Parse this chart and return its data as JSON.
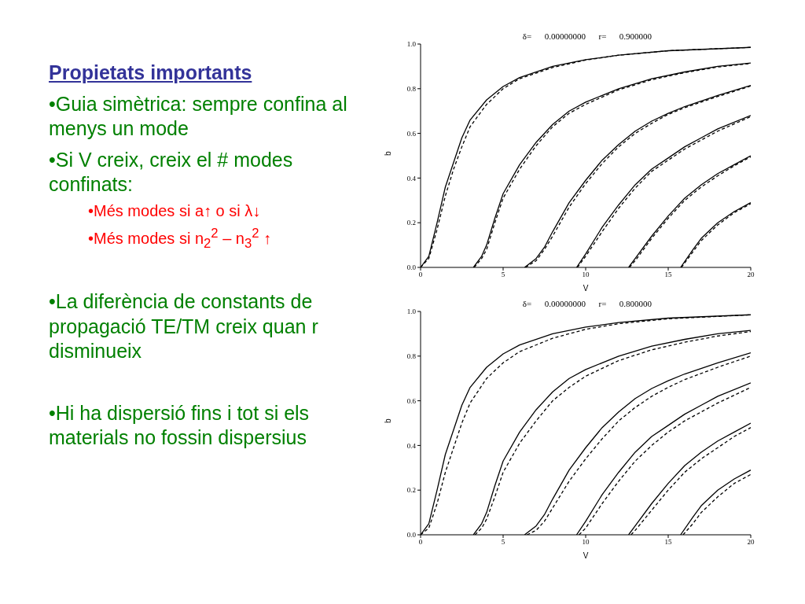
{
  "chart_data": [
    {
      "type": "other",
      "title": "Propietats importants",
      "annotations": [
        "•Guia simètrica: sempre confina al menys un mode",
        "•Si V creix, creix el # modes confinats:",
        "•Més modes si a↑ o si λ↓",
        "•Més modes si n$_{2}$$^{2}$ – n$_{3}$$^{2}$ ↑",
        "•La diferència de constants de propagació TE/TM creix quan r disminueix",
        "•Hi ha dispersió fins i tot si els materials no fossin dispersius"
      ]
    },
    {
      "type": "line",
      "title": "δ=      0.00000000      r=      0.900000",
      "xlabel": "V",
      "ylabel": "b",
      "xlim": [
        0,
        20
      ],
      "ylim": [
        0,
        1
      ],
      "xticks": [
        0,
        5,
        10,
        15,
        20
      ],
      "yticks": [
        {
          "value": 0,
          "label": "0.0"
        },
        {
          "value": 0.2,
          "label": "0.2"
        },
        {
          "value": 0.4,
          "label": "0.4"
        },
        {
          "value": 0.6,
          "label": "0.6"
        },
        {
          "value": 0.8,
          "label": "0.8"
        },
        {
          "value": 1,
          "label": "1.0"
        }
      ],
      "marker": "none",
      "series": [
        {
          "color": "#000000",
          "line_style": "solid",
          "x": [
            0,
            0.5,
            1,
            1.5,
            2,
            2.5,
            3,
            4,
            5,
            6,
            8,
            10,
            12,
            15,
            20
          ],
          "values": [
            0,
            0.05,
            0.2,
            0.36,
            0.47,
            0.58,
            0.66,
            0.75,
            0.81,
            0.85,
            0.9,
            0.93,
            0.95,
            0.97,
            0.985
          ]
        },
        {
          "color": "#000000",
          "line_style": "dashed",
          "x": [
            0,
            0.5,
            1,
            1.5,
            2,
            2.5,
            3,
            4,
            5,
            6,
            8,
            10,
            12,
            15,
            20
          ],
          "values": [
            0,
            0.04,
            0.17,
            0.32,
            0.44,
            0.54,
            0.63,
            0.73,
            0.8,
            0.845,
            0.895,
            0.928,
            0.95,
            0.97,
            0.985
          ]
        },
        {
          "color": "#000000",
          "line_style": "solid",
          "x": [
            3.2,
            3.7,
            4,
            4.5,
            5,
            6,
            7,
            8,
            9,
            10,
            12,
            14,
            16,
            18,
            20
          ],
          "values": [
            0,
            0.05,
            0.1,
            0.22,
            0.33,
            0.46,
            0.56,
            0.64,
            0.7,
            0.74,
            0.8,
            0.845,
            0.875,
            0.9,
            0.915
          ]
        },
        {
          "color": "#000000",
          "line_style": "dashed",
          "x": [
            3.25,
            3.7,
            4,
            4.5,
            5,
            6,
            7,
            8,
            9,
            10,
            12,
            14,
            16,
            18,
            20
          ],
          "values": [
            0,
            0.04,
            0.08,
            0.2,
            0.31,
            0.44,
            0.545,
            0.63,
            0.69,
            0.73,
            0.795,
            0.84,
            0.872,
            0.897,
            0.913
          ]
        },
        {
          "color": "#000000",
          "line_style": "solid",
          "x": [
            6.3,
            7,
            7.5,
            8,
            9,
            10,
            11,
            12,
            13,
            14,
            15,
            16,
            18,
            20
          ],
          "values": [
            0,
            0.04,
            0.09,
            0.16,
            0.29,
            0.39,
            0.48,
            0.55,
            0.61,
            0.655,
            0.69,
            0.72,
            0.77,
            0.815
          ]
        },
        {
          "color": "#000000",
          "line_style": "dashed",
          "x": [
            6.35,
            7,
            7.5,
            8,
            9,
            10,
            11,
            12,
            13,
            14,
            15,
            16,
            18,
            20
          ],
          "values": [
            0,
            0.03,
            0.08,
            0.14,
            0.27,
            0.375,
            0.465,
            0.54,
            0.6,
            0.645,
            0.685,
            0.715,
            0.765,
            0.812
          ]
        },
        {
          "color": "#000000",
          "line_style": "solid",
          "x": [
            9.45,
            10,
            11,
            12,
            13,
            14,
            15,
            16,
            17,
            18,
            20
          ],
          "values": [
            0,
            0.06,
            0.18,
            0.28,
            0.37,
            0.44,
            0.49,
            0.54,
            0.58,
            0.62,
            0.68
          ]
        },
        {
          "color": "#000000",
          "line_style": "dashed",
          "x": [
            9.5,
            10,
            11,
            12,
            13,
            14,
            15,
            16,
            17,
            18,
            20
          ],
          "values": [
            0,
            0.05,
            0.16,
            0.265,
            0.355,
            0.43,
            0.48,
            0.53,
            0.57,
            0.61,
            0.675
          ]
        },
        {
          "color": "#000000",
          "line_style": "solid",
          "x": [
            12.6,
            13,
            14,
            15,
            16,
            17,
            18,
            19,
            20
          ],
          "values": [
            0,
            0.04,
            0.14,
            0.23,
            0.31,
            0.37,
            0.42,
            0.46,
            0.5
          ]
        },
        {
          "color": "#000000",
          "line_style": "dashed",
          "x": [
            12.65,
            13,
            14,
            15,
            16,
            17,
            18,
            19,
            20
          ],
          "values": [
            0,
            0.03,
            0.13,
            0.22,
            0.3,
            0.36,
            0.41,
            0.455,
            0.495
          ]
        },
        {
          "color": "#000000",
          "line_style": "solid",
          "x": [
            15.75,
            16.5,
            17,
            18,
            19,
            20
          ],
          "values": [
            0,
            0.08,
            0.13,
            0.2,
            0.25,
            0.29
          ]
        },
        {
          "color": "#000000",
          "line_style": "dashed",
          "x": [
            15.8,
            16.5,
            17,
            18,
            19,
            20
          ],
          "values": [
            0,
            0.07,
            0.12,
            0.19,
            0.245,
            0.285
          ]
        }
      ]
    },
    {
      "type": "line",
      "title": "δ=      0.00000000      r=      0.800000",
      "xlabel": "V",
      "ylabel": "b",
      "xlim": [
        0,
        20
      ],
      "ylim": [
        0,
        1
      ],
      "xticks": [
        0,
        5,
        10,
        15,
        20
      ],
      "yticks": [
        {
          "value": 0,
          "label": "0.0"
        },
        {
          "value": 0.2,
          "label": "0.2"
        },
        {
          "value": 0.4,
          "label": "0.4"
        },
        {
          "value": 0.6,
          "label": "0.6"
        },
        {
          "value": 0.8,
          "label": "0.8"
        },
        {
          "value": 1,
          "label": "1.0"
        }
      ],
      "marker": "none",
      "series": [
        {
          "color": "#000000",
          "line_style": "solid",
          "x": [
            0,
            0.5,
            1,
            1.5,
            2,
            2.5,
            3,
            4,
            5,
            6,
            8,
            10,
            12,
            15,
            20
          ],
          "values": [
            0,
            0.05,
            0.2,
            0.36,
            0.47,
            0.58,
            0.66,
            0.75,
            0.81,
            0.85,
            0.9,
            0.93,
            0.95,
            0.97,
            0.985
          ]
        },
        {
          "color": "#000000",
          "line_style": "dashed",
          "x": [
            0,
            0.5,
            1,
            1.5,
            2,
            2.5,
            3,
            4,
            5,
            6,
            8,
            10,
            12,
            15,
            20
          ],
          "values": [
            0,
            0.03,
            0.14,
            0.28,
            0.39,
            0.5,
            0.59,
            0.7,
            0.77,
            0.82,
            0.88,
            0.92,
            0.945,
            0.967,
            0.985
          ]
        },
        {
          "color": "#000000",
          "line_style": "solid",
          "x": [
            3.2,
            3.7,
            4,
            4.5,
            5,
            6,
            7,
            8,
            9,
            10,
            12,
            14,
            16,
            18,
            20
          ],
          "values": [
            0,
            0.05,
            0.1,
            0.22,
            0.33,
            0.46,
            0.56,
            0.64,
            0.7,
            0.74,
            0.8,
            0.845,
            0.875,
            0.9,
            0.915
          ]
        },
        {
          "color": "#000000",
          "line_style": "dashed",
          "x": [
            3.3,
            3.7,
            4,
            4.5,
            5,
            6,
            7,
            8,
            9,
            10,
            12,
            14,
            16,
            18,
            20
          ],
          "values": [
            0,
            0.03,
            0.07,
            0.17,
            0.28,
            0.41,
            0.51,
            0.6,
            0.66,
            0.71,
            0.78,
            0.828,
            0.862,
            0.89,
            0.91
          ]
        },
        {
          "color": "#000000",
          "line_style": "solid",
          "x": [
            6.3,
            7,
            7.5,
            8,
            9,
            10,
            11,
            12,
            13,
            14,
            15,
            16,
            18,
            20
          ],
          "values": [
            0,
            0.04,
            0.09,
            0.16,
            0.29,
            0.39,
            0.48,
            0.55,
            0.61,
            0.655,
            0.69,
            0.72,
            0.77,
            0.815
          ]
        },
        {
          "color": "#000000",
          "line_style": "dashed",
          "x": [
            6.45,
            7,
            7.5,
            8,
            9,
            10,
            11,
            12,
            13,
            14,
            15,
            16,
            18,
            20
          ],
          "values": [
            0,
            0.02,
            0.06,
            0.12,
            0.24,
            0.34,
            0.43,
            0.51,
            0.57,
            0.62,
            0.66,
            0.695,
            0.75,
            0.8
          ]
        },
        {
          "color": "#000000",
          "line_style": "solid",
          "x": [
            9.45,
            10,
            11,
            12,
            13,
            14,
            15,
            16,
            17,
            18,
            20
          ],
          "values": [
            0,
            0.06,
            0.18,
            0.28,
            0.37,
            0.44,
            0.49,
            0.54,
            0.58,
            0.62,
            0.68
          ]
        },
        {
          "color": "#000000",
          "line_style": "dashed",
          "x": [
            9.6,
            10,
            11,
            12,
            13,
            14,
            15,
            16,
            17,
            18,
            20
          ],
          "values": [
            0,
            0.03,
            0.14,
            0.24,
            0.33,
            0.4,
            0.46,
            0.51,
            0.55,
            0.59,
            0.66
          ]
        },
        {
          "color": "#000000",
          "line_style": "solid",
          "x": [
            12.6,
            13,
            14,
            15,
            16,
            17,
            18,
            19,
            20
          ],
          "values": [
            0,
            0.04,
            0.14,
            0.23,
            0.31,
            0.37,
            0.42,
            0.46,
            0.5
          ]
        },
        {
          "color": "#000000",
          "line_style": "dashed",
          "x": [
            12.75,
            13,
            14,
            15,
            16,
            17,
            18,
            19,
            20
          ],
          "values": [
            0,
            0.02,
            0.11,
            0.2,
            0.28,
            0.34,
            0.39,
            0.44,
            0.48
          ]
        },
        {
          "color": "#000000",
          "line_style": "solid",
          "x": [
            15.75,
            16.5,
            17,
            18,
            19,
            20
          ],
          "values": [
            0,
            0.08,
            0.13,
            0.2,
            0.25,
            0.29
          ]
        },
        {
          "color": "#000000",
          "line_style": "dashed",
          "x": [
            15.9,
            16.5,
            17,
            18,
            19,
            20
          ],
          "values": [
            0,
            0.05,
            0.1,
            0.17,
            0.23,
            0.27
          ]
        }
      ]
    }
  ]
}
